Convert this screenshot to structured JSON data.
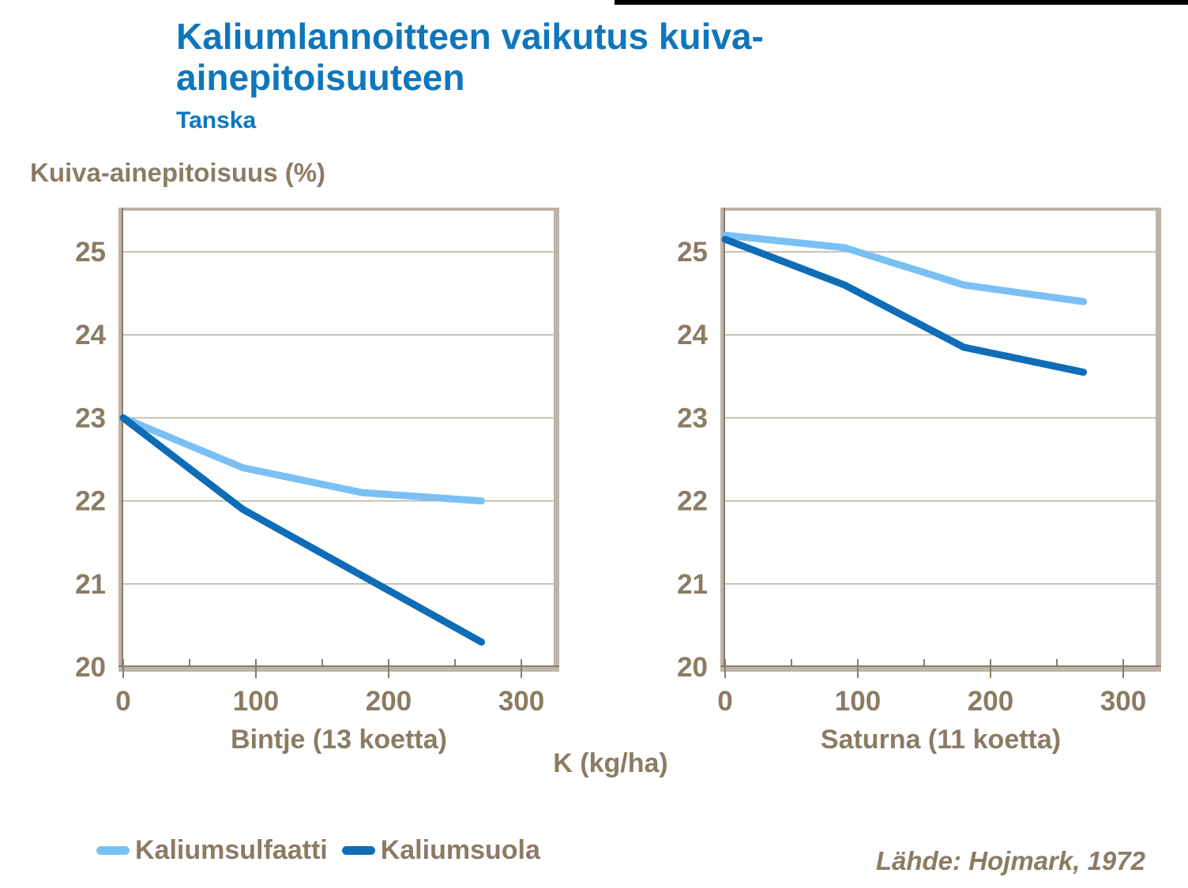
{
  "page": {
    "title": "Kaliumlannoitteen vaikutus kuiva-\nainepitoisuuteen",
    "subtitle": "Tanska",
    "y_axis_title": "Kuiva-ainepitoisuus (%)",
    "x_axis_title": "K (kg/ha)",
    "source": "Lähde: Hojmark, 1972"
  },
  "colors": {
    "title_blue": "#0e76bd",
    "text_taupe": "#8c7b64",
    "frame_tan": "#beb4a7",
    "gridline": "#b7ad9f",
    "kaliumsulfaatti": "#7bc0f5",
    "kaliumsuola": "#0e6db6"
  },
  "legend": [
    {
      "label": "Kaliumsulfaatti",
      "color": "#7bc0f5"
    },
    {
      "label": "Kaliumsuola",
      "color": "#0e6db6"
    }
  ],
  "chart_data": [
    {
      "type": "line",
      "title": "Bintje (13 koetta)",
      "xlabel": "K (kg/ha)",
      "ylabel": "Kuiva-ainepitoisuus (%)",
      "x": [
        0,
        90,
        180,
        270
      ],
      "series": [
        {
          "name": "Kaliumsulfaatti",
          "color": "#7bc0f5",
          "values": [
            23.0,
            22.4,
            22.1,
            22.0
          ]
        },
        {
          "name": "Kaliumsuola",
          "color": "#0e6db6",
          "values": [
            23.0,
            21.9,
            21.1,
            20.3
          ]
        }
      ],
      "xlim": [
        0,
        325
      ],
      "ylim": [
        20,
        25.5
      ],
      "x_ticks": [
        0,
        100,
        200,
        300
      ],
      "x_minor_ticks": [
        50,
        150,
        250
      ],
      "y_ticks": [
        20,
        21,
        22,
        23,
        24,
        25
      ],
      "grid": true,
      "legend_position": "bottom"
    },
    {
      "type": "line",
      "title": "Saturna (11 koetta)",
      "xlabel": "K (kg/ha)",
      "ylabel": "Kuiva-ainepitoisuus (%)",
      "x": [
        0,
        90,
        180,
        270
      ],
      "series": [
        {
          "name": "Kaliumsulfaatti",
          "color": "#7bc0f5",
          "values": [
            25.2,
            25.05,
            24.6,
            24.4
          ]
        },
        {
          "name": "Kaliumsuola",
          "color": "#0e6db6",
          "values": [
            25.15,
            24.6,
            23.85,
            23.55
          ]
        }
      ],
      "xlim": [
        0,
        325
      ],
      "ylim": [
        20,
        25.5
      ],
      "x_ticks": [
        0,
        100,
        200,
        300
      ],
      "x_minor_ticks": [
        50,
        150,
        250
      ],
      "y_ticks": [
        20,
        21,
        22,
        23,
        24,
        25
      ],
      "grid": true,
      "legend_position": "bottom"
    }
  ]
}
